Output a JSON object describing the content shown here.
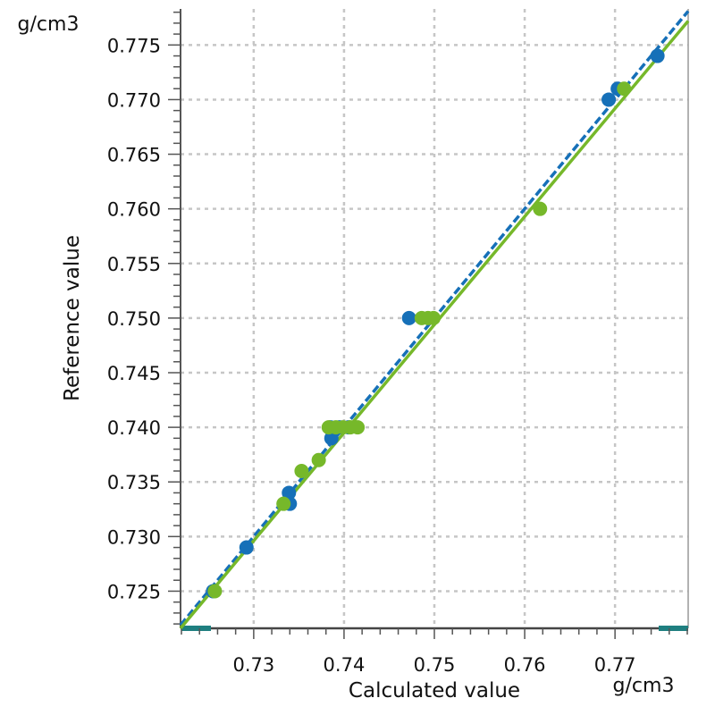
{
  "chart_data": {
    "type": "scatter",
    "title": "",
    "xlabel": "Calculated value",
    "ylabel": "Reference value",
    "x_unit": "g/cm3",
    "y_unit": "g/cm3",
    "xlim": [
      0.7219,
      0.7781
    ],
    "ylim": [
      0.7216,
      0.7783
    ],
    "x_ticks": [
      0.73,
      0.74,
      0.75,
      0.76,
      0.77
    ],
    "x_tick_labels": [
      "0.73",
      "0.74",
      "0.75",
      "0.76",
      "0.77"
    ],
    "y_ticks": [
      0.725,
      0.73,
      0.735,
      0.74,
      0.745,
      0.75,
      0.755,
      0.76,
      0.765,
      0.77,
      0.775
    ],
    "y_tick_labels": [
      "0.725",
      "0.730",
      "0.735",
      "0.740",
      "0.745",
      "0.750",
      "0.755",
      "0.760",
      "0.765",
      "0.770",
      "0.775"
    ],
    "grid": true,
    "legend": "none",
    "series": [
      {
        "color": "#1670b8",
        "trend_line": {
          "x": [
            0.7219,
            0.7781
          ],
          "y": [
            0.7219,
            0.7781
          ],
          "style": "dashed"
        },
        "points": [
          {
            "x": 0.7255,
            "y": 0.725
          },
          {
            "x": 0.7292,
            "y": 0.729
          },
          {
            "x": 0.7339,
            "y": 0.734
          },
          {
            "x": 0.734,
            "y": 0.733
          },
          {
            "x": 0.7386,
            "y": 0.739
          },
          {
            "x": 0.7385,
            "y": 0.74
          },
          {
            "x": 0.7395,
            "y": 0.74
          },
          {
            "x": 0.7405,
            "y": 0.74
          },
          {
            "x": 0.7472,
            "y": 0.75
          },
          {
            "x": 0.7693,
            "y": 0.77
          },
          {
            "x": 0.7703,
            "y": 0.771
          },
          {
            "x": 0.7747,
            "y": 0.774
          }
        ]
      },
      {
        "color": "#76b82a",
        "trend_line": {
          "x": [
            0.7219,
            0.7781
          ],
          "y": [
            0.7216,
            0.7772
          ],
          "style": "solid"
        },
        "points": [
          {
            "x": 0.7257,
            "y": 0.725
          },
          {
            "x": 0.7333,
            "y": 0.733
          },
          {
            "x": 0.7353,
            "y": 0.736
          },
          {
            "x": 0.7372,
            "y": 0.737
          },
          {
            "x": 0.7383,
            "y": 0.74
          },
          {
            "x": 0.7391,
            "y": 0.74
          },
          {
            "x": 0.7399,
            "y": 0.74
          },
          {
            "x": 0.7407,
            "y": 0.74
          },
          {
            "x": 0.7415,
            "y": 0.74
          },
          {
            "x": 0.7486,
            "y": 0.75
          },
          {
            "x": 0.7493,
            "y": 0.75
          },
          {
            "x": 0.7499,
            "y": 0.75
          },
          {
            "x": 0.7617,
            "y": 0.76
          },
          {
            "x": 0.771,
            "y": 0.771
          }
        ]
      }
    ]
  }
}
